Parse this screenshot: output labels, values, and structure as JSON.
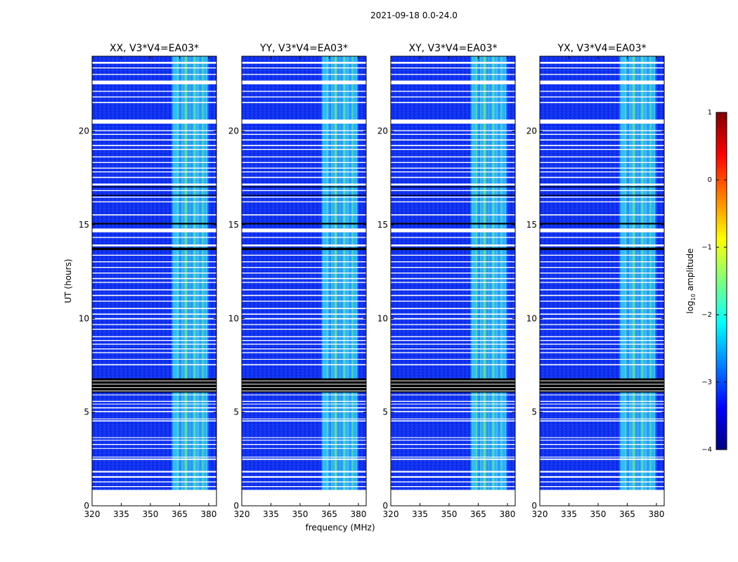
{
  "figure": {
    "suptitle": "2021-09-18 0.0-24.0",
    "xlabel": "frequency (MHz)",
    "ylabel": "UT (hours)"
  },
  "chart_data": [
    {
      "type": "heatmap",
      "title": "XX, V3*V4=EA03*",
      "xlabel": "frequency (MHz)",
      "ylabel": "UT (hours)",
      "xlim": [
        320,
        384
      ],
      "ylim": [
        0,
        24
      ],
      "xticks": [
        320,
        335,
        350,
        365,
        380
      ],
      "yticks": [
        0,
        5,
        10,
        15,
        20
      ],
      "rfi_band_mhz": [
        361,
        380
      ],
      "value": "log10 amplitude"
    },
    {
      "type": "heatmap",
      "title": "YY, V3*V4=EA03*",
      "xlabel": "frequency (MHz)",
      "ylabel": "UT (hours)",
      "xlim": [
        320,
        384
      ],
      "ylim": [
        0,
        24
      ],
      "xticks": [
        320,
        335,
        350,
        365,
        380
      ],
      "yticks": [
        0,
        5,
        10,
        15,
        20
      ],
      "rfi_band_mhz": [
        361,
        380
      ],
      "value": "log10 amplitude"
    },
    {
      "type": "heatmap",
      "title": "XY, V3*V4=EA03*",
      "xlabel": "frequency (MHz)",
      "ylabel": "UT (hours)",
      "xlim": [
        320,
        384
      ],
      "ylim": [
        0,
        24
      ],
      "xticks": [
        320,
        335,
        350,
        365,
        380
      ],
      "yticks": [
        0,
        5,
        10,
        15,
        20
      ],
      "rfi_band_mhz": [
        361,
        380
      ],
      "value": "log10 amplitude"
    },
    {
      "type": "heatmap",
      "title": "YX, V3*V4=EA03*",
      "xlabel": "frequency (MHz)",
      "ylabel": "UT (hours)",
      "xlim": [
        320,
        384
      ],
      "ylim": [
        0,
        24
      ],
      "xticks": [
        320,
        335,
        350,
        365,
        380
      ],
      "yticks": [
        0,
        5,
        10,
        15,
        20
      ],
      "rfi_band_mhz": [
        361,
        380
      ],
      "value": "log10 amplitude"
    }
  ],
  "colorbar": {
    "label": "log10 amplitude",
    "label_base": "log",
    "label_sub": "10",
    "label_rest": " amplitude",
    "ticks": [
      1,
      0,
      -1,
      -2,
      -3,
      -4
    ],
    "tick_labels": [
      "1",
      "0",
      "−1",
      "−2",
      "−3",
      "−4"
    ],
    "range": [
      -4,
      1
    ],
    "colormap": "jet",
    "colors": [
      "#00007f",
      "#0000ff",
      "#007fff",
      "#00ffff",
      "#7fff7f",
      "#ffff00",
      "#ff7f00",
      "#ff0000",
      "#7f0000"
    ]
  },
  "flagged_intervals_hours": [
    [
      0.0,
      0.85
    ],
    [
      1.0,
      1.05
    ],
    [
      1.25,
      1.3
    ],
    [
      1.5,
      1.58
    ],
    [
      1.78,
      1.86
    ],
    [
      2.45,
      2.52
    ],
    [
      2.58,
      2.62
    ],
    [
      3.05,
      3.08
    ],
    [
      3.25,
      3.3
    ],
    [
      3.48,
      3.52
    ],
    [
      3.62,
      3.66
    ],
    [
      4.5,
      4.56
    ],
    [
      4.62,
      4.66
    ],
    [
      5.0,
      5.06
    ],
    [
      5.2,
      5.26
    ],
    [
      5.42,
      5.45
    ],
    [
      5.55,
      5.6
    ],
    [
      5.9,
      5.94
    ],
    [
      7.5,
      7.56
    ],
    [
      7.8,
      7.84
    ],
    [
      8.15,
      8.2
    ],
    [
      8.35,
      8.4
    ],
    [
      8.6,
      8.65
    ],
    [
      8.8,
      8.85
    ],
    [
      9.0,
      9.05
    ],
    [
      9.4,
      9.45
    ],
    [
      9.65,
      9.7
    ],
    [
      9.95,
      10.02
    ],
    [
      10.2,
      10.26
    ],
    [
      10.5,
      10.56
    ],
    [
      10.9,
      10.95
    ],
    [
      11.2,
      11.26
    ],
    [
      11.5,
      11.56
    ],
    [
      11.9,
      11.95
    ],
    [
      12.1,
      12.16
    ],
    [
      12.4,
      12.45
    ],
    [
      12.7,
      12.75
    ],
    [
      13.0,
      13.05
    ],
    [
      13.35,
      13.4
    ],
    [
      13.85,
      13.95
    ],
    [
      14.3,
      14.35
    ],
    [
      14.6,
      14.8
    ],
    [
      15.5,
      15.56
    ],
    [
      16.2,
      16.25
    ],
    [
      16.45,
      16.5
    ],
    [
      16.8,
      16.85
    ],
    [
      17.1,
      17.2
    ],
    [
      17.5,
      17.56
    ],
    [
      17.8,
      17.85
    ],
    [
      18.0,
      18.05
    ],
    [
      18.3,
      18.35
    ],
    [
      18.6,
      18.65
    ],
    [
      19.0,
      19.05
    ],
    [
      19.2,
      19.26
    ],
    [
      19.5,
      19.56
    ],
    [
      19.8,
      19.85
    ],
    [
      20.0,
      20.05
    ],
    [
      20.4,
      20.62
    ],
    [
      21.5,
      21.56
    ],
    [
      21.8,
      21.85
    ],
    [
      22.1,
      22.15
    ],
    [
      22.5,
      22.7
    ],
    [
      23.0,
      23.05
    ],
    [
      23.35,
      23.4
    ],
    [
      23.6,
      23.7
    ]
  ],
  "black_intervals_hours": [
    [
      6.05,
      6.8
    ],
    [
      13.65,
      13.78
    ],
    [
      15.02,
      15.1
    ],
    [
      16.55,
      16.6
    ],
    [
      17.0,
      17.05
    ]
  ]
}
